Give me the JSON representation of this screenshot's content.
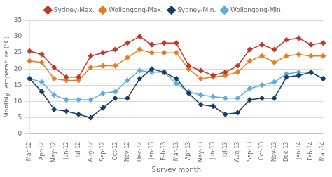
{
  "chart_data": {
    "type": "line",
    "xlabel": "Survey month",
    "ylabel": "Monthly Temperature (°C)",
    "categories": [
      "Mar-12",
      "Apr-12",
      "May-12",
      "Jun-12",
      "Jul-12",
      "Aug-12",
      "Sep-12",
      "Oct-12",
      "Nov-12",
      "Dec-12",
      "Jan-13",
      "Feb-13",
      "Mar-13",
      "Apr-13",
      "May-13",
      "Jun-13",
      "Jul-13",
      "Aug-13",
      "Sep-13",
      "Oct-13",
      "Nov-13",
      "Dec-13",
      "Jan-14",
      "Feb-14",
      "Mar-14"
    ],
    "series": [
      {
        "name": "Sydney-Max.",
        "color": "#c0392b",
        "marker": "diamond",
        "values": [
          25.5,
          24.5,
          20.5,
          17.5,
          17.5,
          24.0,
          25.0,
          26.0,
          28.0,
          30.0,
          27.5,
          28.0,
          28.0,
          21.0,
          19.5,
          18.0,
          19.0,
          21.0,
          26.0,
          27.5,
          26.0,
          29.0,
          29.5,
          27.5,
          28.0
        ]
      },
      {
        "name": "Wollongong-Max.",
        "color": "#e67e22",
        "marker": "diamond",
        "values": [
          22.5,
          22.0,
          17.0,
          16.5,
          16.5,
          20.5,
          21.0,
          21.0,
          23.5,
          26.0,
          25.0,
          25.0,
          25.0,
          20.0,
          17.0,
          17.5,
          18.0,
          19.0,
          22.5,
          24.0,
          22.0,
          24.0,
          24.5,
          24.0,
          24.0
        ]
      },
      {
        "name": "Sydney-Min.",
        "color": "#1a3c6b",
        "marker": "diamond",
        "values": [
          17.0,
          13.0,
          7.5,
          7.0,
          6.0,
          5.0,
          8.0,
          11.0,
          11.0,
          17.0,
          20.0,
          19.0,
          17.0,
          12.5,
          9.0,
          8.5,
          6.0,
          6.5,
          10.5,
          11.0,
          11.0,
          17.5,
          18.0,
          19.0,
          17.0
        ]
      },
      {
        "name": "Wollongong-Min.",
        "color": "#5dade2",
        "marker": "diamond",
        "values": [
          17.0,
          16.0,
          12.0,
          10.5,
          10.5,
          10.5,
          12.5,
          13.0,
          16.5,
          19.5,
          19.0,
          19.0,
          15.5,
          13.0,
          12.0,
          11.5,
          11.0,
          11.0,
          14.0,
          15.0,
          16.0,
          18.5,
          19.0,
          19.0,
          17.0
        ]
      }
    ],
    "ylim": [
      0,
      35
    ],
    "yticks": [
      0,
      5,
      10,
      15,
      20,
      25,
      30,
      35
    ],
    "grid": "y",
    "legend": "top"
  }
}
